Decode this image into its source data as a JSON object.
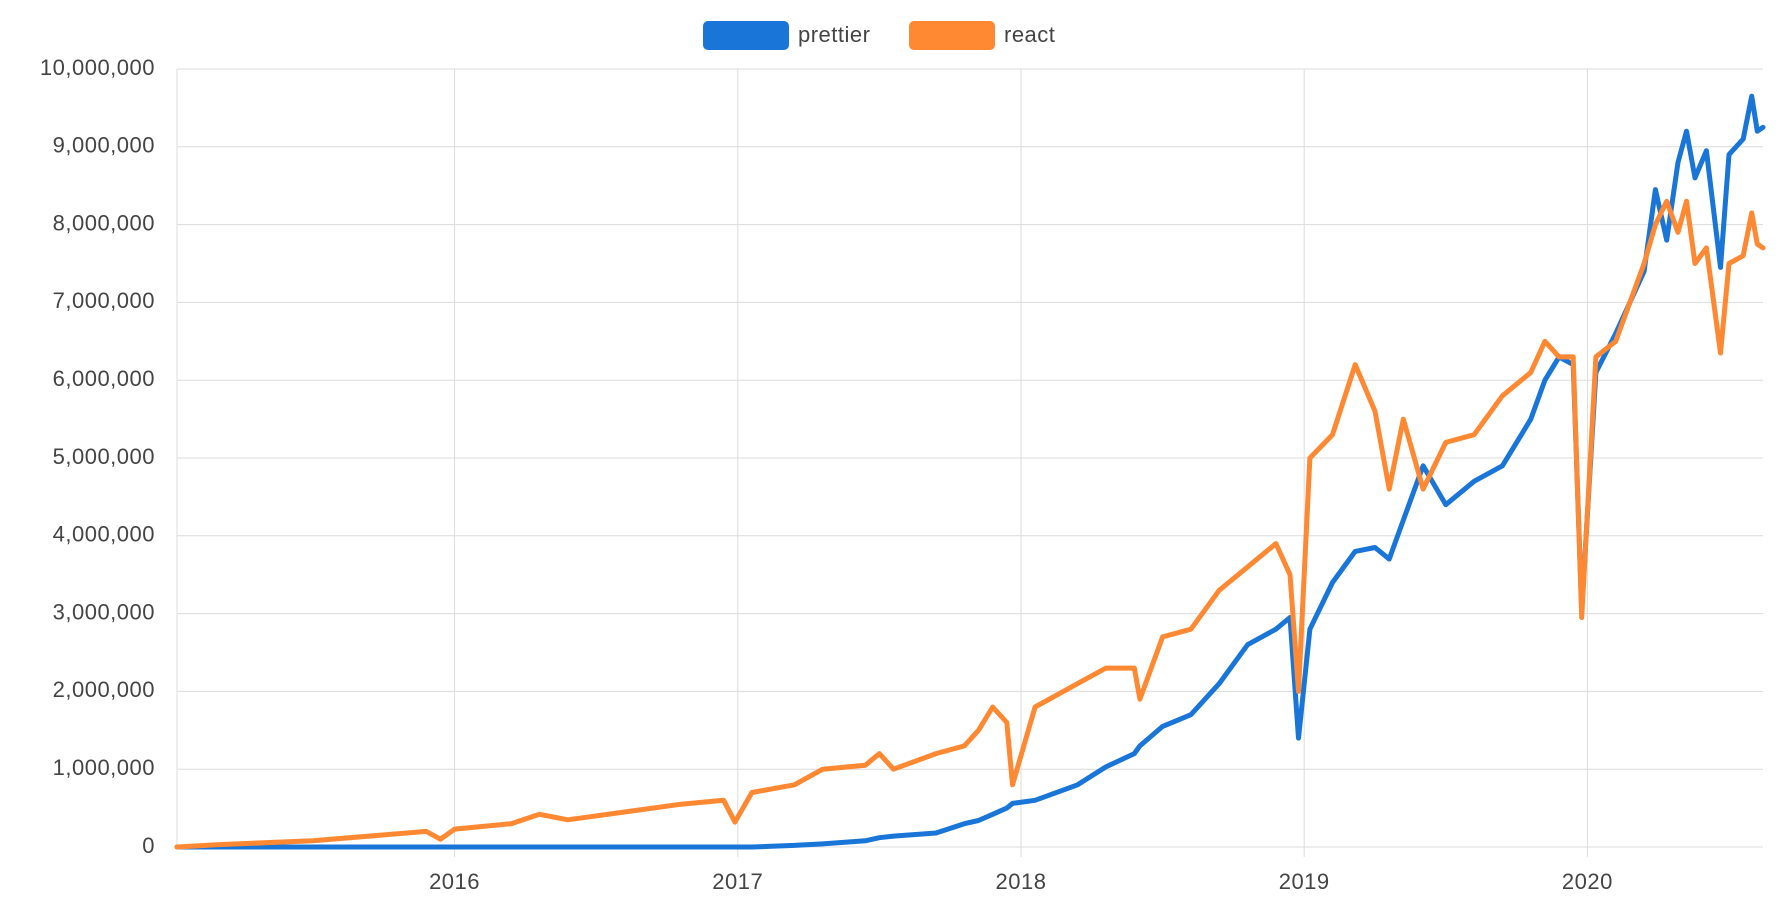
{
  "chart_data": {
    "type": "line",
    "x": [
      2015.02,
      2015.16,
      2015.5,
      2015.9,
      2015.95,
      2016.0,
      2016.2,
      2016.3,
      2016.4,
      2016.6,
      2016.8,
      2016.95,
      2016.99,
      2017.05,
      2017.2,
      2017.3,
      2017.45,
      2017.5,
      2017.55,
      2017.7,
      2017.8,
      2017.85,
      2017.9,
      2017.95,
      2017.97,
      2018.05,
      2018.2,
      2018.3,
      2018.4,
      2018.42,
      2018.5,
      2018.6,
      2018.7,
      2018.8,
      2018.9,
      2018.95,
      2018.98,
      2019.02,
      2019.1,
      2019.18,
      2019.25,
      2019.3,
      2019.35,
      2019.42,
      2019.5,
      2019.6,
      2019.7,
      2019.8,
      2019.85,
      2019.9,
      2019.95,
      2019.98,
      2020.03,
      2020.1,
      2020.2,
      2020.24,
      2020.28,
      2020.32,
      2020.35,
      2020.38,
      2020.42,
      2020.47,
      2020.5,
      2020.55,
      2020.58,
      2020.6,
      2020.62
    ],
    "series": [
      {
        "name": "prettier",
        "color": "#1976d8",
        "values": [
          0,
          0,
          0,
          0,
          0,
          0,
          0,
          0,
          0,
          0,
          0,
          0,
          0,
          0,
          20000,
          40000,
          80000,
          120000,
          140000,
          180000,
          300000,
          340000,
          420000,
          500000,
          560000,
          600000,
          800000,
          1030000,
          1200000,
          1300000,
          1550000,
          1700000,
          2100000,
          2600000,
          2800000,
          2950000,
          1400000,
          2800000,
          3400000,
          3800000,
          3850000,
          3700000,
          4200000,
          4900000,
          4400000,
          4700000,
          4900000,
          5500000,
          6000000,
          6300000,
          6200000,
          3050000,
          6100000,
          6600000,
          7400000,
          8450000,
          7800000,
          8800000,
          9200000,
          8600000,
          8950000,
          7450000,
          8900000,
          9100000,
          9650000,
          9200000,
          9250000
        ]
      },
      {
        "name": "react",
        "color": "#ff8833",
        "values": [
          0,
          30000,
          80000,
          200000,
          100000,
          230000,
          300000,
          420000,
          350000,
          450000,
          550000,
          600000,
          320000,
          700000,
          800000,
          1000000,
          1050000,
          1200000,
          1000000,
          1200000,
          1300000,
          1500000,
          1800000,
          1600000,
          800000,
          1800000,
          2100000,
          2300000,
          2300000,
          1900000,
          2700000,
          2800000,
          3300000,
          3600000,
          3900000,
          3500000,
          2000000,
          5000000,
          5300000,
          6200000,
          5600000,
          4600000,
          5500000,
          4600000,
          5200000,
          5300000,
          5800000,
          6100000,
          6500000,
          6300000,
          6300000,
          2950000,
          6300000,
          6500000,
          7500000,
          8000000,
          8300000,
          7900000,
          8300000,
          7500000,
          7700000,
          6350000,
          7500000,
          7600000,
          8150000,
          7750000,
          7700000
        ]
      }
    ],
    "xlim": [
      2015.02,
      2020.62
    ],
    "xticks": [
      2016,
      2017,
      2018,
      2019,
      2020
    ],
    "ylim": [
      0,
      10000000
    ],
    "yticks": [
      0,
      {
        "value": 1000000,
        "label": "1,000,000"
      },
      {
        "value": 2000000,
        "label": "2,000,000"
      },
      {
        "value": 3000000,
        "label": "3,000,000"
      },
      {
        "value": 4000000,
        "label": "4,000,000"
      },
      {
        "value": 5000000,
        "label": "5,000,000"
      },
      {
        "value": 6000000,
        "label": "6,000,000"
      },
      {
        "value": 7000000,
        "label": "7,000,000"
      },
      {
        "value": 8000000,
        "label": "8,000,000"
      },
      {
        "value": 9000000,
        "label": "9,000,000"
      },
      {
        "value": 10000000,
        "label": "10,000,000"
      }
    ],
    "grid": true,
    "legend": "top"
  }
}
